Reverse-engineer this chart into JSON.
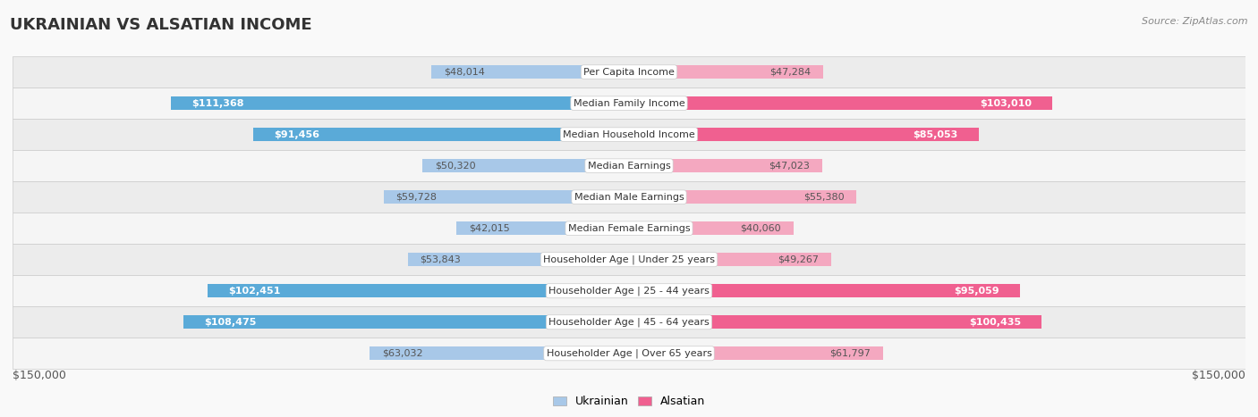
{
  "title": "UKRAINIAN VS ALSATIAN INCOME",
  "source": "Source: ZipAtlas.com",
  "categories": [
    "Per Capita Income",
    "Median Family Income",
    "Median Household Income",
    "Median Earnings",
    "Median Male Earnings",
    "Median Female Earnings",
    "Householder Age | Under 25 years",
    "Householder Age | 25 - 44 years",
    "Householder Age | 45 - 64 years",
    "Householder Age | Over 65 years"
  ],
  "ukrainian_values": [
    48014,
    111368,
    91456,
    50320,
    59728,
    42015,
    53843,
    102451,
    108475,
    63032
  ],
  "alsatian_values": [
    47284,
    103010,
    85053,
    47023,
    55380,
    40060,
    49267,
    95059,
    100435,
    61797
  ],
  "ukrainian_labels": [
    "$48,014",
    "$111,368",
    "$91,456",
    "$50,320",
    "$59,728",
    "$42,015",
    "$53,843",
    "$102,451",
    "$108,475",
    "$63,032"
  ],
  "alsatian_labels": [
    "$47,284",
    "$103,010",
    "$85,053",
    "$47,023",
    "$55,380",
    "$40,060",
    "$49,267",
    "$95,059",
    "$100,435",
    "$61,797"
  ],
  "max_value": 150000,
  "ukr_large_threshold": 80000,
  "als_large_threshold": 80000,
  "ukrainian_bar_color_light": "#a8c8e8",
  "ukrainian_bar_color_dark": "#5aaad8",
  "alsatian_bar_color_light": "#f4a8c0",
  "alsatian_bar_color_dark": "#f06090",
  "row_colors": [
    "#ececec",
    "#f5f5f5",
    "#ececec",
    "#f5f5f5",
    "#ececec",
    "#f5f5f5",
    "#ececec",
    "#f5f5f5",
    "#ececec",
    "#f5f5f5"
  ],
  "page_bg": "#f9f9f9",
  "label_inside_color": "#ffffff",
  "label_outside_color": "#555555",
  "title_fontsize": 13,
  "label_fontsize": 8,
  "category_fontsize": 8,
  "axis_label_fontsize": 9,
  "legend_fontsize": 9,
  "bar_height": 0.42
}
